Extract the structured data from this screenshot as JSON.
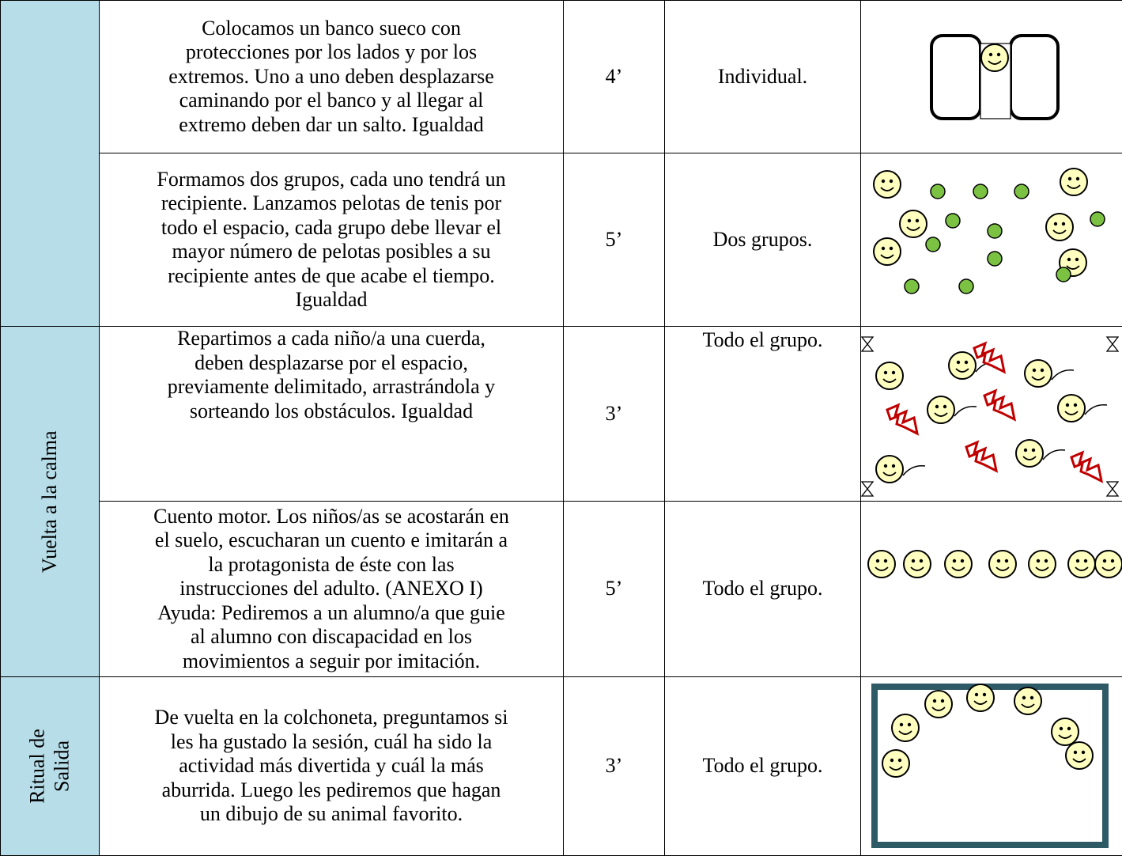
{
  "table": {
    "rows": [
      {
        "activity": [
          "Colocamos un banco sueco con",
          "protecciones por los lados y por los",
          "extremos. Uno a uno deben desplazarse",
          "caminando por el banco y al llegar al",
          "extremo deben dar un salto. Igualdad"
        ],
        "time": "4’",
        "grouping": "Individual."
      },
      {
        "activity": [
          "Formamos dos grupos, cada uno tendrá un",
          "recipiente. Lanzamos pelotas de tenis por",
          "todo el espacio, cada grupo debe llevar el",
          "mayor número de pelotas posibles a su",
          "recipiente antes de que acabe el tiempo.",
          "Igualdad"
        ],
        "time": "5’",
        "grouping": "Dos grupos."
      },
      {
        "activity": [
          "Repartimos a cada niño/a una cuerda,",
          "deben desplazarse por el espacio,",
          "previamente delimitado, arrastrándola y",
          "sorteando los obstáculos. Igualdad"
        ],
        "time": "3’",
        "grouping": "Todo el grupo."
      },
      {
        "activity": [
          "Cuento motor. Los niños/as se acostarán en",
          "el suelo, escucharan un cuento e imitarán a",
          "la protagonista de éste con las",
          "instrucciones del adulto.  (ANEXO I)",
          "Ayuda: Pediremos a un alumno/a que guie",
          "al alumno con discapacidad en los",
          "movimientos a seguir por imitación."
        ],
        "time": "5’",
        "grouping": "Todo el grupo."
      },
      {
        "activity": [
          "De vuelta en la colchoneta, preguntamos si",
          "les ha gustado la sesión, cuál ha sido la",
          "actividad más divertida y cuál la más",
          "aburrida. Luego les pediremos que hagan",
          "un dibujo de su animal favorito."
        ],
        "time": "3’",
        "grouping": "Todo el grupo."
      }
    ],
    "sections": [
      {
        "label": [
          "Vuelta a la calma"
        ]
      },
      {
        "label": [
          "Ritual de",
          "Salida"
        ]
      }
    ]
  }
}
